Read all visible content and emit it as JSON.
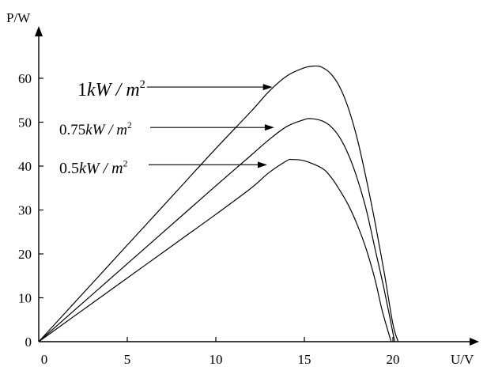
{
  "chart_data": {
    "type": "line",
    "xlabel": "U/V",
    "ylabel": "P/W",
    "xlim": [
      0,
      20
    ],
    "ylim": [
      0,
      60
    ],
    "xticks": [
      0,
      5,
      10,
      15,
      20
    ],
    "yticks": [
      0,
      10,
      20,
      30,
      40,
      50,
      60
    ],
    "grid": false,
    "legend": "none",
    "series": [
      {
        "label_num": "1",
        "label_unit": "kW / m",
        "label_sup": "2",
        "x": [
          0,
          2,
          4,
          6,
          8,
          10,
          12,
          13,
          14,
          15,
          15.6,
          16,
          16.5,
          17,
          17.5,
          18,
          18.5,
          19,
          19.5,
          20,
          20.3
        ],
        "y": [
          0,
          8.8,
          17.6,
          26.4,
          35.2,
          44,
          52.5,
          57,
          60.5,
          62.4,
          62.8,
          62.5,
          61,
          58,
          53,
          46,
          37,
          27,
          16,
          4,
          0
        ]
      },
      {
        "label_num": "0.75",
        "label_unit": "kW / m",
        "label_sup": "2",
        "x": [
          0,
          2,
          4,
          6,
          8,
          10,
          12,
          13,
          14,
          15,
          15.4,
          16,
          16.5,
          17,
          17.5,
          18,
          18.5,
          19,
          19.5,
          20.1
        ],
        "y": [
          0,
          7.1,
          14.2,
          21.3,
          28.4,
          35.5,
          42.5,
          46,
          49,
          50.6,
          50.8,
          50.3,
          49,
          46.5,
          42.5,
          37,
          30,
          21,
          12,
          0
        ]
      },
      {
        "label_num": "0.5",
        "label_unit": "kW / m",
        "label_sup": "2",
        "x": [
          0,
          2,
          4,
          6,
          8,
          10,
          12,
          13,
          14,
          14.3,
          15,
          16,
          16.5,
          17,
          17.5,
          18,
          18.5,
          19,
          19.4,
          19.9
        ],
        "y": [
          0,
          5.8,
          11.6,
          17.4,
          23.2,
          29,
          35,
          38.5,
          41.2,
          41.5,
          41.2,
          39.5,
          37.5,
          34.5,
          31,
          26.5,
          21,
          14,
          7,
          0
        ]
      }
    ],
    "annotations": [
      {
        "series": 0,
        "point": [
          13.2,
          58.0
        ]
      },
      {
        "series": 1,
        "point": [
          13.3,
          48.8
        ]
      },
      {
        "series": 2,
        "point": [
          12.9,
          40.3
        ]
      }
    ]
  }
}
